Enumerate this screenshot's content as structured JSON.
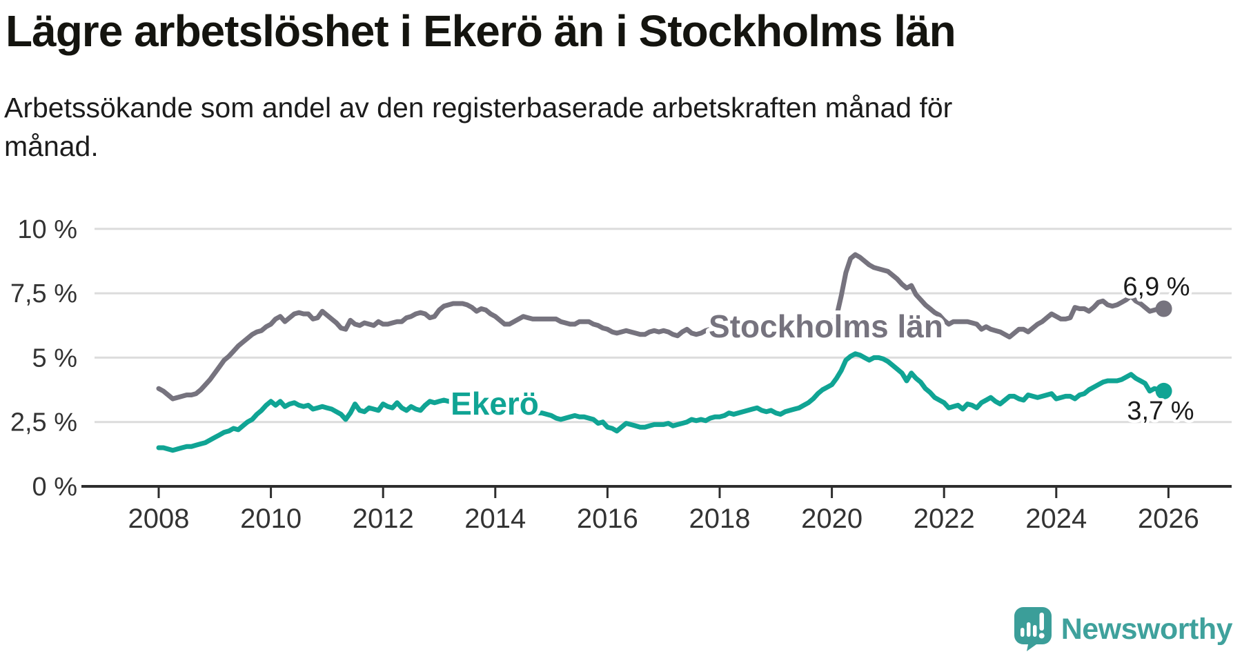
{
  "title": "Lägre arbetslöshet i Ekerö än i Stockholms län",
  "subtitle": "Arbetssökande som andel av den registerbaserade arbetskraften månad för månad.",
  "footer": {
    "brand": "Newsworthy"
  },
  "colors": {
    "stockholm_line": "#76737e",
    "ekero_line": "#10a494",
    "gridline": "#dcdcdc",
    "axis": "#2d2d2d",
    "brand_teal": "#3fa19c"
  },
  "chart_data": {
    "type": "line",
    "title": "Lägre arbetslöshet i Ekerö än i Stockholms län",
    "subtitle": "Arbetssökande som andel av den registerbaserade arbetskraften månad för månad.",
    "unit": "%",
    "x_start_year": 2008,
    "x_step_months": 1,
    "xlim": [
      2007.6,
      2027.0
    ],
    "ylim": [
      0,
      10
    ],
    "grid": "horizontal",
    "legend_position": "inline-labels",
    "x_ticks": [
      {
        "label": "2008",
        "value": 2008
      },
      {
        "label": "2010",
        "value": 2010
      },
      {
        "label": "2012",
        "value": 2012
      },
      {
        "label": "2014",
        "value": 2014
      },
      {
        "label": "2016",
        "value": 2016
      },
      {
        "label": "2018",
        "value": 2018
      },
      {
        "label": "2020",
        "value": 2020
      },
      {
        "label": "2022",
        "value": 2022
      },
      {
        "label": "2024",
        "value": 2024
      },
      {
        "label": "2026",
        "value": 2026
      }
    ],
    "y_ticks": [
      {
        "label": "10 %",
        "value": 10
      },
      {
        "label": "7,5 %",
        "value": 7.5
      },
      {
        "label": "5 %",
        "value": 5
      },
      {
        "label": "2,5 %",
        "value": 2.5
      },
      {
        "label": "0 %",
        "value": 0
      }
    ],
    "series": [
      {
        "name": "Stockholms län",
        "color": "#76737e",
        "end_label": "6,9 %",
        "end_value": 6.9,
        "values": [
          3.8,
          3.7,
          3.55,
          3.4,
          3.45,
          3.5,
          3.55,
          3.55,
          3.6,
          3.75,
          3.95,
          4.15,
          4.4,
          4.65,
          4.9,
          5.05,
          5.25,
          5.45,
          5.6,
          5.75,
          5.9,
          6.0,
          6.05,
          6.2,
          6.3,
          6.5,
          6.6,
          6.4,
          6.55,
          6.7,
          6.75,
          6.7,
          6.7,
          6.5,
          6.55,
          6.8,
          6.65,
          6.5,
          6.35,
          6.15,
          6.1,
          6.45,
          6.3,
          6.25,
          6.35,
          6.3,
          6.25,
          6.4,
          6.3,
          6.3,
          6.35,
          6.4,
          6.4,
          6.55,
          6.6,
          6.7,
          6.75,
          6.7,
          6.55,
          6.6,
          6.85,
          7.0,
          7.05,
          7.1,
          7.1,
          7.1,
          7.05,
          6.95,
          6.8,
          6.9,
          6.85,
          6.7,
          6.6,
          6.45,
          6.3,
          6.3,
          6.4,
          6.5,
          6.6,
          6.55,
          6.5,
          6.5,
          6.5,
          6.5,
          6.5,
          6.5,
          6.4,
          6.35,
          6.3,
          6.3,
          6.4,
          6.4,
          6.4,
          6.3,
          6.25,
          6.15,
          6.1,
          6.0,
          5.95,
          6.0,
          6.05,
          6.0,
          5.95,
          5.9,
          5.9,
          6.0,
          6.05,
          6.0,
          6.05,
          6.0,
          5.9,
          5.85,
          6.0,
          6.1,
          5.95,
          5.9,
          5.95,
          6.05,
          6.1,
          6.1,
          6.05,
          6.1,
          6.1,
          6.1,
          6.05,
          6.1,
          6.1,
          6.1,
          6.05,
          6.1,
          6.1,
          6.1,
          6.1,
          6.1,
          6.1,
          6.15,
          6.1,
          6.15,
          6.2,
          6.2,
          6.2,
          6.25,
          6.3,
          6.3,
          6.35,
          6.6,
          7.4,
          8.3,
          8.85,
          9.0,
          8.9,
          8.75,
          8.6,
          8.5,
          8.45,
          8.4,
          8.35,
          8.2,
          8.05,
          7.85,
          7.7,
          7.8,
          7.45,
          7.25,
          7.05,
          6.9,
          6.75,
          6.65,
          6.45,
          6.3,
          6.4,
          6.4,
          6.4,
          6.4,
          6.35,
          6.3,
          6.1,
          6.2,
          6.1,
          6.05,
          6.0,
          5.9,
          5.8,
          5.95,
          6.1,
          6.1,
          6.0,
          6.15,
          6.3,
          6.4,
          6.55,
          6.7,
          6.6,
          6.5,
          6.5,
          6.55,
          6.95,
          6.9,
          6.9,
          6.8,
          6.95,
          7.15,
          7.2,
          7.05,
          7.0,
          7.05,
          7.15,
          7.25,
          7.4,
          7.2,
          7.1,
          6.95,
          6.8,
          6.85,
          6.9,
          6.9
        ]
      },
      {
        "name": "Ekerö",
        "color": "#10a494",
        "end_label": "3,7 %",
        "end_value": 3.7,
        "values": [
          1.5,
          1.5,
          1.45,
          1.4,
          1.45,
          1.5,
          1.55,
          1.55,
          1.6,
          1.65,
          1.7,
          1.8,
          1.9,
          2.0,
          2.1,
          2.15,
          2.25,
          2.2,
          2.35,
          2.5,
          2.6,
          2.8,
          2.95,
          3.15,
          3.3,
          3.15,
          3.3,
          3.1,
          3.2,
          3.25,
          3.15,
          3.1,
          3.15,
          3.0,
          3.05,
          3.1,
          3.05,
          3.0,
          2.9,
          2.8,
          2.6,
          2.85,
          3.2,
          2.95,
          2.9,
          3.05,
          3.0,
          2.95,
          3.2,
          3.1,
          3.05,
          3.25,
          3.05,
          2.95,
          3.1,
          3.0,
          2.95,
          3.15,
          3.3,
          3.25,
          3.3,
          3.35,
          3.3,
          3.35,
          3.4,
          3.45,
          3.4,
          3.35,
          3.3,
          3.3,
          3.25,
          3.2,
          3.15,
          3.1,
          3.1,
          3.05,
          3.0,
          3.0,
          2.95,
          2.9,
          2.9,
          2.85,
          2.85,
          2.8,
          2.75,
          2.65,
          2.6,
          2.65,
          2.7,
          2.75,
          2.7,
          2.7,
          2.65,
          2.6,
          2.45,
          2.5,
          2.3,
          2.25,
          2.15,
          2.3,
          2.45,
          2.4,
          2.35,
          2.3,
          2.3,
          2.35,
          2.4,
          2.4,
          2.4,
          2.45,
          2.35,
          2.4,
          2.45,
          2.5,
          2.6,
          2.55,
          2.6,
          2.55,
          2.65,
          2.7,
          2.7,
          2.75,
          2.85,
          2.8,
          2.85,
          2.9,
          2.95,
          3.0,
          3.05,
          2.95,
          2.9,
          2.95,
          2.85,
          2.8,
          2.9,
          2.95,
          3.0,
          3.05,
          3.15,
          3.25,
          3.4,
          3.6,
          3.75,
          3.85,
          3.95,
          4.2,
          4.5,
          4.9,
          5.05,
          5.15,
          5.1,
          5.0,
          4.9,
          5.0,
          5.0,
          4.95,
          4.85,
          4.7,
          4.55,
          4.4,
          4.1,
          4.4,
          4.2,
          4.05,
          3.8,
          3.65,
          3.45,
          3.35,
          3.25,
          3.05,
          3.1,
          3.15,
          3.0,
          3.2,
          3.15,
          3.05,
          3.25,
          3.35,
          3.45,
          3.3,
          3.2,
          3.35,
          3.5,
          3.5,
          3.4,
          3.35,
          3.55,
          3.5,
          3.45,
          3.5,
          3.55,
          3.6,
          3.4,
          3.45,
          3.5,
          3.5,
          3.4,
          3.55,
          3.6,
          3.75,
          3.85,
          3.95,
          4.05,
          4.1,
          4.1,
          4.1,
          4.15,
          4.25,
          4.35,
          4.2,
          4.1,
          4.0,
          3.7,
          3.8,
          3.75,
          3.7
        ]
      }
    ]
  }
}
